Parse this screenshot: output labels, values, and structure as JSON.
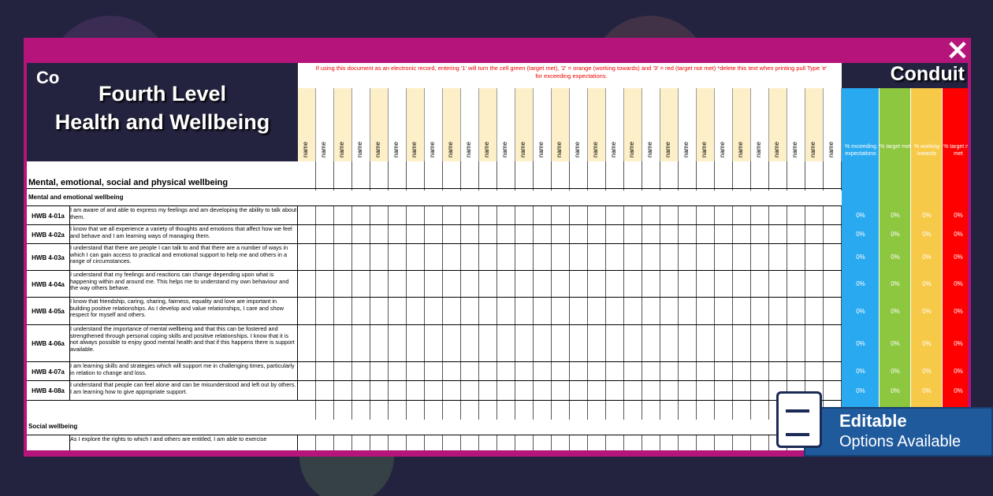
{
  "logo": "Co",
  "title": [
    "Fourth Level",
    "Health and Wellbeing"
  ],
  "instructions": "If using this document as an electronic record, entering '1' will turn the cell green (target met), '2' = orange (working towards) and '3' = red (target not met) *delete this text when printing pull Type 'e' for exceeding expectations.",
  "brand": "Conduit",
  "name_columns": [
    "name",
    "name",
    "name",
    "name",
    "name",
    "name",
    "name",
    "name",
    "name",
    "name",
    "name",
    "name",
    "name",
    "name",
    "name",
    "name",
    "name",
    "name",
    "name",
    "name",
    "name",
    "name",
    "name",
    "name",
    "name",
    "name",
    "name",
    "name",
    "name",
    "name"
  ],
  "percent_columns": [
    "% exceeding expectations",
    "% target met",
    "% working towards",
    "% target not met"
  ],
  "section": "Mental, emotional, social and physical wellbeing",
  "groups": [
    {
      "title": "Mental and emotional wellbeing",
      "rows": [
        {
          "code": "HWB 4-01a",
          "text": "I am aware of and able to express my feelings and am developing the ability to talk about them.",
          "percents": [
            "0%",
            "0%",
            "0%",
            "0%"
          ]
        },
        {
          "code": "HWB 4-02a",
          "text": "I know that we all experience a variety of thoughts and emotions that affect how we feel and behave and I am learning ways of managing them.",
          "percents": [
            "0%",
            "0%",
            "0%",
            "0%"
          ]
        },
        {
          "code": "HWB 4-03a",
          "text": "I understand that there are people I can talk to and that there are a number of ways in which I can gain access to practical and emotional support to help me and others in a range of circumstances.",
          "percents": [
            "0%",
            "0%",
            "0%",
            "0%"
          ]
        },
        {
          "code": "HWB 4-04a",
          "text": "I understand that my feelings and reactions can change depending upon what is happening within and around me. This helps me to understand my own behaviour and the way others behave.",
          "percents": [
            "0%",
            "0%",
            "0%",
            "0%"
          ]
        },
        {
          "code": "HWB 4-05a",
          "text": "I know that friendship, caring, sharing, fairness, equality and love are important in building positive relationships. As I develop and value relationships, I care and show respect for myself and others.",
          "percents": [
            "0%",
            "0%",
            "0%",
            "0%"
          ]
        },
        {
          "code": "HWB 4-06a",
          "text": "I understand the importance of mental wellbeing and that this can be fostered and strengthened through personal coping skills and positive relationships. I know that it is not always possible to enjoy good mental health and that if this happens there is support available.",
          "percents": [
            "0%",
            "0%",
            "0%",
            "0%"
          ]
        },
        {
          "code": "HWB 4-07a",
          "text": "I am learning skills and strategies which will support me in challenging times, particularly in relation to change and loss.",
          "percents": [
            "0%",
            "0%",
            "0%",
            "0%"
          ]
        },
        {
          "code": "HWB 4-08a",
          "text": "I understand that people can feel alone and can be misunderstood and left out by others. I am learning how to give appropriate support.",
          "percents": [
            "0%",
            "0%",
            "0%",
            "0%"
          ]
        }
      ]
    },
    {
      "title": "Social wellbeing",
      "rows": [
        {
          "text": "As I explore the rights to which I and others are entitled, I am able to exercise"
        }
      ]
    }
  ],
  "badge": {
    "title": "Editable",
    "subtitle": "Options Available"
  }
}
